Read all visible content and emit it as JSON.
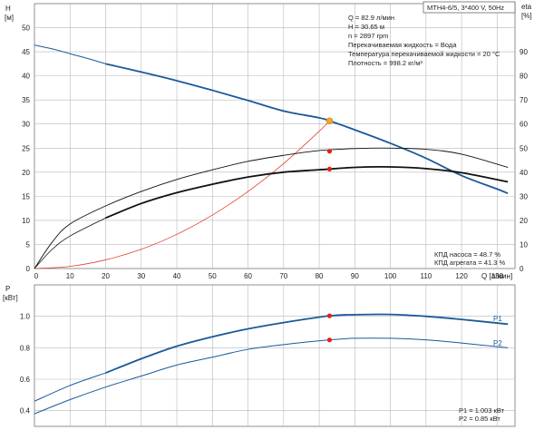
{
  "chart_data": [
    {
      "type": "line",
      "title": "MTH4-6/5, 3*400 V, 50Hz",
      "xlabel": "Q [л/мин]",
      "xlim": [
        0,
        135
      ],
      "x_ticks": [
        10,
        20,
        30,
        40,
        50,
        60,
        70,
        80,
        90,
        100,
        110,
        120,
        130
      ],
      "left_axis": {
        "label_top": "H",
        "label_bottom": "[м]",
        "ylim": [
          0,
          55
        ],
        "ticks": [
          0,
          5,
          10,
          15,
          20,
          25,
          30,
          35,
          40,
          45,
          50
        ]
      },
      "right_axis": {
        "label_top": "eta",
        "label_bottom": "[%]",
        "ylim": [
          0,
          110
        ],
        "ticks": [
          0,
          10,
          20,
          30,
          40,
          50,
          60,
          70,
          80,
          90
        ]
      },
      "grid": true,
      "info_lines": [
        "Q = 82.9 л/мин",
        "H = 30.65 м",
        "n = 2897 rpm",
        "Перекачиваемая жидкость = Вода",
        "Температура перекачиваемой жидкости = 20 °C",
        "Плотность = 998.2 кг/м³"
      ],
      "efficiency_lines": [
        "КПД насоса = 48.7 %",
        "КПД агрегата = 41.3 %"
      ],
      "series": [
        {
          "axis": "left",
          "color": "#1a5a9a",
          "style": "head-thin",
          "x": [
            0,
            5,
            10,
            15,
            20
          ],
          "y": [
            46.4,
            45.6,
            44.6,
            43.6,
            42.5
          ]
        },
        {
          "axis": "left",
          "color": "#1a5a9a",
          "style": "head",
          "x": [
            20,
            30,
            40,
            50,
            60,
            70,
            80,
            82.9,
            90,
            100,
            110,
            120,
            130,
            133
          ],
          "y": [
            42.5,
            40.8,
            39.0,
            37.0,
            34.9,
            32.7,
            31.3,
            30.65,
            28.8,
            26.0,
            22.9,
            19.3,
            16.5,
            15.6
          ]
        },
        {
          "axis": "left",
          "color": "#e04030",
          "style": "system",
          "x": [
            0,
            10,
            20,
            30,
            40,
            50,
            60,
            70,
            80,
            82.9
          ],
          "y": [
            0,
            0.45,
            1.8,
            4.0,
            7.1,
            11.1,
            16.0,
            21.8,
            28.5,
            30.65
          ]
        },
        {
          "axis": "right",
          "color": "#111111",
          "style": "eta-thin",
          "x": [
            0,
            5,
            10,
            20,
            30,
            40,
            50,
            60,
            70,
            80,
            90,
            100,
            110,
            120,
            133
          ],
          "y": [
            0,
            11,
            18.5,
            26,
            32,
            37,
            41,
            44.5,
            47,
            49,
            49.8,
            50,
            49.5,
            47.5,
            42
          ]
        },
        {
          "axis": "right",
          "color": "#111111",
          "style": "eta",
          "x": [
            20,
            30,
            40,
            50,
            60,
            70,
            80,
            90,
            100,
            110,
            120,
            133
          ],
          "y": [
            21,
            27,
            31.5,
            35,
            38,
            40,
            41,
            42,
            42.2,
            41.5,
            39.8,
            36
          ]
        },
        {
          "axis": "right",
          "color": "#111111",
          "style": "eta-left-thin",
          "x": [
            0,
            5,
            10,
            20
          ],
          "y": [
            0,
            8,
            13.5,
            21
          ]
        }
      ],
      "duty_point": {
        "x": 82.9,
        "y": 30.65
      },
      "markers": [
        {
          "axis": "right",
          "x": 82.9,
          "y": 48.7
        },
        {
          "axis": "right",
          "x": 82.9,
          "y": 41.3
        }
      ]
    },
    {
      "type": "line",
      "xlim": [
        0,
        135
      ],
      "left_axis": {
        "label_top": "P",
        "label_bottom": "[кВт]",
        "ylim": [
          0.3,
          1.2
        ],
        "ticks": [
          0.4,
          0.6,
          0.8,
          1.0
        ]
      },
      "grid": true,
      "power_lines": [
        "P1 = 1.003 кВт",
        "P2 = 0.85 кВт"
      ],
      "series": [
        {
          "name": "P1",
          "color": "#1a5a9a",
          "style": "p1-thin",
          "x": [
            0,
            10,
            20
          ],
          "y": [
            0.46,
            0.56,
            0.64
          ]
        },
        {
          "name": "P1",
          "color": "#1a5a9a",
          "style": "p1",
          "x": [
            20,
            30,
            40,
            50,
            60,
            70,
            82.9,
            90,
            100,
            110,
            120,
            133
          ],
          "y": [
            0.64,
            0.73,
            0.81,
            0.87,
            0.92,
            0.96,
            1.003,
            1.01,
            1.012,
            1.0,
            0.98,
            0.95
          ]
        },
        {
          "name": "P2",
          "color": "#1a5a9a",
          "style": "p2",
          "x": [
            0,
            10,
            20,
            30,
            40,
            50,
            60,
            70,
            82.9,
            90,
            100,
            110,
            120,
            133
          ],
          "y": [
            0.38,
            0.47,
            0.55,
            0.62,
            0.69,
            0.74,
            0.79,
            0.82,
            0.85,
            0.86,
            0.86,
            0.85,
            0.83,
            0.8
          ]
        }
      ],
      "markers": [
        {
          "x": 82.9,
          "y": 1.003
        },
        {
          "x": 82.9,
          "y": 0.85
        }
      ]
    }
  ]
}
